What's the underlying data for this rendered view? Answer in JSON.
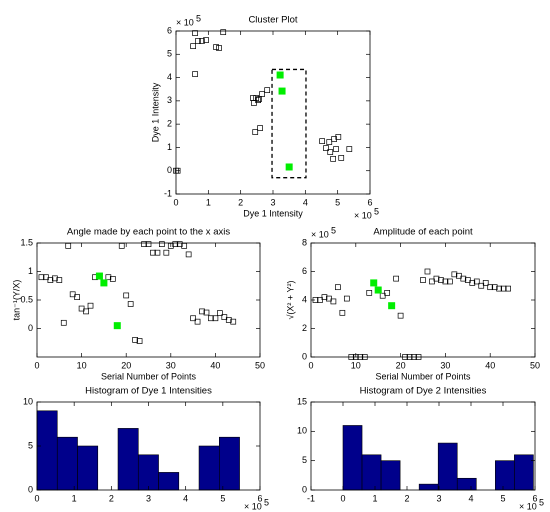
{
  "chart_data": [
    {
      "type": "scatter",
      "title": "Cluster Plot",
      "xlabel": "Dye 1 Intensity",
      "ylabel": "Dye 1 Intensity",
      "x_multiplier": "× 10",
      "x_exponent": "5",
      "y_multiplier": "× 10",
      "y_exponent": "5",
      "xlim": [
        0,
        6
      ],
      "ylim": [
        -1,
        6
      ],
      "xticks": [
        0,
        1,
        2,
        3,
        4,
        5,
        6
      ],
      "yticks": [
        -1,
        0,
        1,
        2,
        3,
        4,
        5,
        6
      ],
      "selection": {
        "x": [
          2.97,
          4.02
        ],
        "y": [
          -0.3,
          4.35
        ]
      },
      "series": [
        {
          "color": "#000000",
          "marker": "open-square",
          "x": [
            0.59,
            1.46,
            0.68,
            0.8,
            0.93,
            0.53,
            1.24,
            1.33,
            0.59,
            0.0,
            0.05,
            2.66,
            2.82,
            2.38,
            2.48,
            2.57,
            2.41,
            2.54,
            2.45,
            2.6,
            4.52,
            4.74,
            4.89,
            5.02,
            4.64,
            4.77,
            4.95,
            5.11,
            4.86,
            5.36
          ],
          "y": [
            5.91,
            5.95,
            5.57,
            5.57,
            5.61,
            5.35,
            5.31,
            5.27,
            4.15,
            0.0,
            0.0,
            3.29,
            3.46,
            3.12,
            3.12,
            3.08,
            2.91,
            3.03,
            1.66,
            1.83,
            1.27,
            1.23,
            1.36,
            1.45,
            0.97,
            0.8,
            0.93,
            0.55,
            0.51,
            0.93
          ]
        },
        {
          "color": "#00ee00",
          "marker": "filled-square",
          "x": [
            3.22,
            3.28,
            3.5
          ],
          "y": [
            4.11,
            3.42,
            0.16
          ]
        }
      ]
    },
    {
      "type": "scatter",
      "title": "Angle made by each point to the x axis",
      "xlabel": "Serial Number of Points",
      "ylabel": "tan⁻¹(Y/X)",
      "xlim": [
        0,
        50
      ],
      "ylim": [
        -0.5,
        1.5
      ],
      "xticks": [
        0,
        10,
        20,
        30,
        40,
        50
      ],
      "yticks": [
        0,
        0.5,
        1,
        1.5
      ],
      "series": [
        {
          "color": "#000000",
          "marker": "open-square",
          "x": [
            1,
            2,
            3,
            4,
            5,
            6,
            7,
            8,
            9,
            10,
            11,
            12,
            13,
            16,
            17,
            19,
            20,
            21,
            22,
            23,
            24,
            25,
            26,
            27,
            28,
            29,
            30,
            31,
            32,
            33,
            34,
            35,
            36,
            37,
            38,
            39,
            40,
            41,
            42,
            43,
            44
          ],
          "y": [
            0.9,
            0.9,
            0.85,
            0.88,
            0.85,
            0.1,
            1.45,
            0.6,
            0.55,
            0.35,
            0.3,
            0.4,
            0.9,
            0.9,
            0.87,
            1.45,
            0.58,
            0.43,
            -0.2,
            -0.22,
            1.48,
            1.48,
            1.33,
            1.33,
            1.48,
            1.33,
            1.45,
            1.48,
            1.48,
            1.45,
            1.3,
            0.18,
            0.12,
            0.3,
            0.28,
            0.18,
            0.18,
            0.27,
            0.2,
            0.15,
            0.12
          ]
        },
        {
          "color": "#00ee00",
          "marker": "filled-square",
          "x": [
            14,
            15,
            18
          ],
          "y": [
            0.92,
            0.8,
            0.05
          ]
        }
      ]
    },
    {
      "type": "scatter",
      "title": "Amplitude of each point",
      "xlabel": "Serial Number of Points",
      "ylabel": "√(X² + Y²)",
      "y_multiplier": "× 10",
      "y_exponent": "5",
      "xlim": [
        0,
        50
      ],
      "ylim": [
        0,
        8
      ],
      "xticks": [
        0,
        10,
        20,
        30,
        40,
        50
      ],
      "yticks": [
        0,
        2,
        4,
        6,
        8
      ],
      "series": [
        {
          "color": "#000000",
          "marker": "open-square",
          "x": [
            1,
            2,
            3,
            4,
            5,
            6,
            7,
            8,
            9,
            10,
            11,
            12,
            13,
            16,
            17,
            19,
            20,
            21,
            22,
            23,
            24,
            25,
            26,
            27,
            28,
            29,
            30,
            31,
            32,
            33,
            34,
            35,
            36,
            37,
            38,
            39,
            40,
            41,
            42,
            43,
            44
          ],
          "y": [
            4.0,
            4.0,
            4.2,
            4.1,
            3.9,
            4.9,
            3.1,
            4.1,
            0,
            0,
            0,
            0,
            4.5,
            4.3,
            4.5,
            5.5,
            2.9,
            0,
            0,
            0,
            0,
            5.4,
            6.0,
            5.3,
            5.5,
            5.4,
            5.3,
            5.3,
            5.8,
            5.7,
            5.5,
            5.4,
            5.2,
            5.3,
            5.0,
            5.2,
            4.9,
            4.9,
            4.8,
            4.8,
            4.8
          ]
        },
        {
          "color": "#00ee00",
          "marker": "filled-square",
          "x": [
            14,
            15,
            18
          ],
          "y": [
            5.2,
            4.7,
            3.6
          ]
        }
      ]
    },
    {
      "type": "histogram",
      "title": "Histogram of Dye 1 Intensities",
      "x_multiplier": "× 10",
      "x_exponent": "5",
      "color": "#00008b",
      "xlim": [
        0,
        6
      ],
      "ylim": [
        0,
        10
      ],
      "xticks": [
        0,
        1,
        2,
        3,
        4,
        5,
        6
      ],
      "yticks": [
        0,
        5,
        10
      ],
      "bins": [
        0,
        0.545,
        1.09,
        1.635,
        2.18,
        2.725,
        3.27,
        3.815,
        4.36,
        4.905,
        5.45
      ],
      "counts": [
        9,
        6,
        5,
        0,
        7,
        4,
        2,
        0,
        5,
        6
      ]
    },
    {
      "type": "histogram",
      "title": "Histogram of Dye 2 Intensities",
      "x_multiplier": "× 10",
      "x_exponent": "5",
      "color": "#00008b",
      "xlim": [
        -1,
        6
      ],
      "ylim": [
        0,
        15
      ],
      "xticks": [
        -1,
        0,
        1,
        2,
        3,
        4,
        5,
        6
      ],
      "yticks": [
        0,
        5,
        10,
        15
      ],
      "bins": [
        0,
        0.595,
        1.19,
        1.785,
        2.38,
        2.975,
        3.57,
        4.165,
        4.76,
        5.355,
        5.95
      ],
      "counts": [
        11,
        6,
        5,
        0,
        1,
        8,
        2,
        0,
        5,
        6
      ]
    }
  ]
}
